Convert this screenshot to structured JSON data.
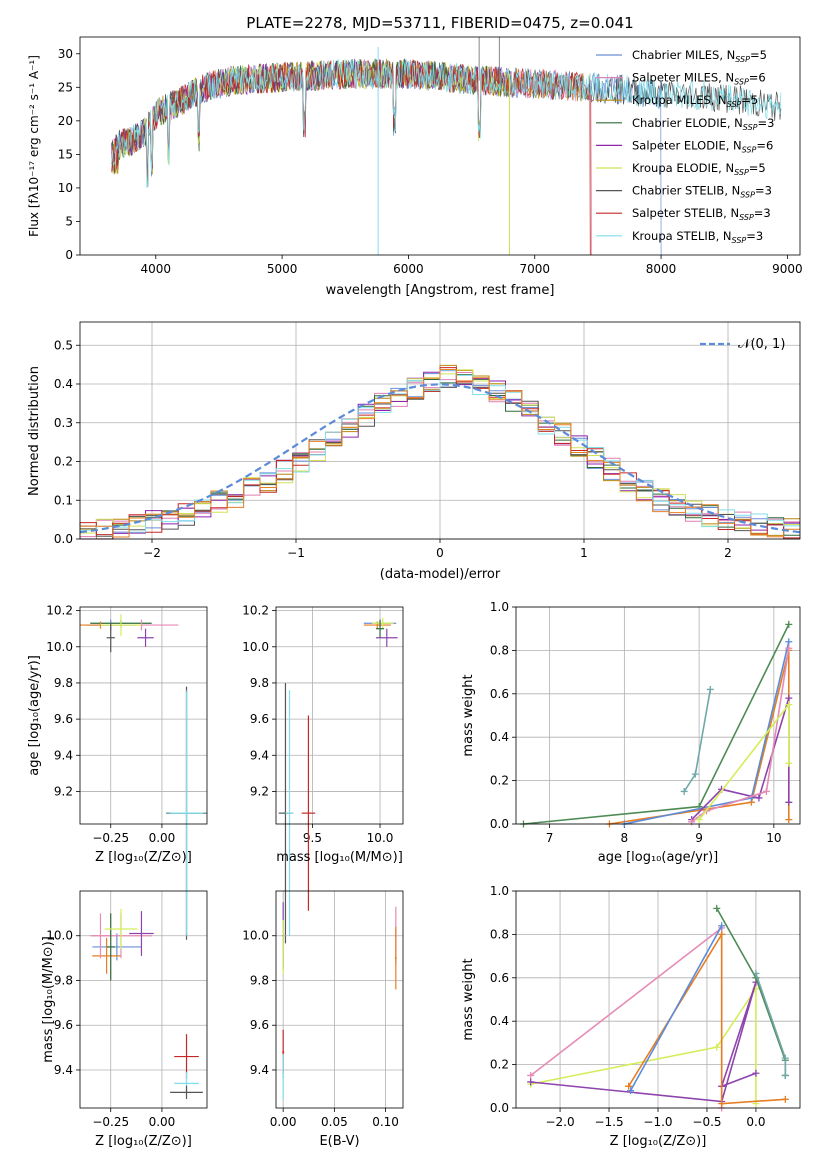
{
  "colors": {
    "Chabrier MILES": "#6a8fd8",
    "Salpeter MILES": "#e07fb5",
    "Kroupa MILES": "#b8860b",
    "Chabrier ELODIE": "#2e6b3c",
    "Salpeter ELODIE": "#8e24aa",
    "Kroupa ELODIE": "#d4e157",
    "Chabrier STELIB": "#555555",
    "Salpeter STELIB": "#c62828",
    "Kroupa STELIB": "#80deea",
    "normal": "#5b8bd9",
    "orange": "#e67e22",
    "green": "#4e8b55",
    "teal": "#6fa8a8",
    "purple": "#8e44ad",
    "pink": "#e68bb5",
    "lime": "#d4ed5a"
  },
  "chart_data": [
    {
      "type": "line",
      "title": "PLATE=2278, MJD=53711, FIBERID=0475, z=0.041",
      "xlabel": "wavelength [Angstrom, rest frame]",
      "ylabel": "Flux [fλ10⁻¹⁷ erg cm⁻² s⁻¹ A⁻¹]",
      "xlim": [
        3400,
        9100
      ],
      "ylim": [
        0,
        32.5
      ],
      "xticks": [
        "4000",
        "5000",
        "6000",
        "7000",
        "8000",
        "9000"
      ],
      "yticks": [
        "0",
        "5",
        "10",
        "15",
        "20",
        "25",
        "30"
      ],
      "legend_position": "top-right",
      "series": [
        {
          "name": "Chabrier MILES, NSSP=5",
          "label": "Chabrier MILES, N",
          "sub": "SSP",
          "tail": "=5",
          "end": 8000
        },
        {
          "name": "Salpeter MILES, NSSP=6",
          "label": "Salpeter MILES, N",
          "sub": "SSP",
          "tail": "=6",
          "end": 7450
        },
        {
          "name": "Kroupa MILES, NSSP=5",
          "label": "Kroupa MILES, N",
          "sub": "SSP",
          "tail": "=5",
          "end": 7440
        },
        {
          "name": "Chabrier ELODIE, NSSP=3",
          "label": "Chabrier ELODIE, N",
          "sub": "SSP",
          "tail": "=3",
          "end": 6800
        },
        {
          "name": "Salpeter ELODIE, NSSP=6",
          "label": "Salpeter ELODIE, N",
          "sub": "SSP",
          "tail": "=6",
          "end": 6800
        },
        {
          "name": "Kroupa ELODIE, NSSP=5",
          "label": "Kroupa ELODIE, N",
          "sub": "SSP",
          "tail": "=5",
          "end": 6800
        },
        {
          "name": "Chabrier STELIB, NSSP=3",
          "label": "Chabrier STELIB, N",
          "sub": "SSP",
          "tail": "=3",
          "end": 8950
        },
        {
          "name": "Salpeter STELIB, NSSP=3",
          "label": "Salpeter STELIB, N",
          "sub": "SSP",
          "tail": "=3",
          "end": 7440
        },
        {
          "name": "Kroupa STELIB, NSSP=3",
          "label": "Kroupa STELIB, N",
          "sub": "SSP",
          "tail": "=3",
          "end": 8950
        }
      ],
      "continuum": [
        [
          3650,
          16
        ],
        [
          3800,
          17
        ],
        [
          3900,
          18
        ],
        [
          4000,
          21
        ],
        [
          4200,
          23
        ],
        [
          4400,
          25
        ],
        [
          4600,
          26
        ],
        [
          5000,
          26.5
        ],
        [
          5300,
          26.8
        ],
        [
          5600,
          27
        ],
        [
          6000,
          27
        ],
        [
          6300,
          26.5
        ],
        [
          6600,
          26
        ],
        [
          7000,
          25.5
        ],
        [
          7500,
          25
        ],
        [
          8000,
          24
        ],
        [
          8500,
          23.5
        ],
        [
          8950,
          22
        ]
      ]
    },
    {
      "type": "step",
      "xlabel": "(data-model)/error",
      "ylabel": "Normed distribution",
      "xlim": [
        -2.5,
        2.5
      ],
      "ylim": [
        0,
        0.56
      ],
      "xticks": [
        "−2",
        "−1",
        "0",
        "1",
        "2"
      ],
      "yticks": [
        "0.0",
        "0.1",
        "0.2",
        "0.3",
        "0.4",
        "0.5"
      ],
      "legend": "𝒩(0, 1)",
      "legend_position": "top-right",
      "bin_edges": [
        -2.5,
        2.5
      ],
      "n_bins": 44,
      "base_profile": [
        0.018,
        0.025,
        0.03,
        0.04,
        0.045,
        0.055,
        0.065,
        0.08,
        0.095,
        0.11,
        0.13,
        0.15,
        0.175,
        0.2,
        0.23,
        0.26,
        0.29,
        0.32,
        0.35,
        0.37,
        0.39,
        0.41,
        0.42,
        0.41,
        0.4,
        0.38,
        0.355,
        0.33,
        0.3,
        0.27,
        0.24,
        0.21,
        0.18,
        0.15,
        0.125,
        0.1,
        0.085,
        0.07,
        0.06,
        0.05,
        0.04,
        0.035,
        0.03,
        0.028
      ]
    },
    {
      "type": "errorbar",
      "xlabel": "Z [log₁₀(Z/Z⊙)]",
      "ylabel": "age  [log₁₀(age/yr)]",
      "xlim": [
        -0.4,
        0.22
      ],
      "ylim": [
        9.02,
        10.22
      ],
      "xticks": [
        "−0.25",
        "0.00"
      ],
      "yticks": [
        "9.2",
        "9.4",
        "9.6",
        "9.8",
        "10.0",
        "10.2"
      ]
    },
    {
      "type": "errorbar",
      "xlabel": "mass [log₁₀(M/M⊙)]",
      "ylabel": "",
      "xlim": [
        9.23,
        10.17
      ],
      "ylim": [
        9.02,
        10.22
      ],
      "xticks": [
        "9.5",
        "10.0"
      ],
      "yticks": [
        "9.2",
        "9.4",
        "9.6",
        "9.8",
        "10.0",
        "10.2"
      ]
    },
    {
      "type": "line",
      "xlabel": "age  [log₁₀(age/yr)]",
      "ylabel": "mass weight",
      "xlim": [
        6.55,
        10.35
      ],
      "ylim": [
        0,
        1.0
      ],
      "xticks": [
        "7",
        "8",
        "9",
        "10"
      ],
      "yticks": [
        "0.0",
        "0.2",
        "0.4",
        "0.6",
        "0.8",
        "1.0"
      ],
      "series": [
        {
          "color": "teal",
          "x": [
            8.8,
            8.95,
            9.15
          ],
          "y": [
            0.15,
            0.23,
            0.62
          ]
        },
        {
          "color": "green",
          "x": [
            6.65,
            9.0,
            10.2
          ],
          "y": [
            0.0,
            0.08,
            0.92
          ]
        },
        {
          "color": "orange",
          "x": [
            7.8,
            9.7,
            10.2,
            10.2
          ],
          "y": [
            0.0,
            0.1,
            0.8,
            0.02
          ]
        },
        {
          "color": "normal",
          "x": [
            8.0,
            9.7,
            10.2
          ],
          "y": [
            0.0,
            0.12,
            0.84
          ]
        },
        {
          "color": "purple",
          "x": [
            8.9,
            9.3,
            9.8,
            10.2,
            10.2
          ],
          "y": [
            0.02,
            0.16,
            0.12,
            0.58,
            0.1
          ]
        },
        {
          "color": "pink",
          "x": [
            8.9,
            9.1,
            9.9,
            10.2
          ],
          "y": [
            0.01,
            0.06,
            0.15,
            0.81
          ]
        },
        {
          "color": "lime",
          "x": [
            9.0,
            10.2,
            10.2
          ],
          "y": [
            0.02,
            0.55,
            0.28
          ]
        }
      ]
    },
    {
      "type": "errorbar",
      "xlabel": "Z [log₁₀(Z/Z⊙)]",
      "ylabel": "mass [log₁₀(M/M⊙)]",
      "xlim": [
        -0.4,
        0.22
      ],
      "ylim": [
        9.23,
        10.2
      ],
      "xticks": [
        "−0.25",
        "0.00"
      ],
      "yticks": [
        "9.4",
        "9.6",
        "9.8",
        "10.0"
      ]
    },
    {
      "type": "errorbar",
      "xlabel": "E(B-V)",
      "ylabel": "",
      "xlim": [
        -0.007,
        0.117
      ],
      "ylim": [
        9.23,
        10.2
      ],
      "xticks": [
        "0.00",
        "0.05",
        "0.10"
      ],
      "yticks": [
        "9.4",
        "9.6",
        "9.8",
        "10.0"
      ]
    },
    {
      "type": "line",
      "xlabel": "Z [log₁₀(Z/Z⊙)]",
      "ylabel": "mass weight",
      "xlim": [
        -2.45,
        0.45
      ],
      "ylim": [
        0,
        1.0
      ],
      "xticks": [
        "−2.0",
        "−1.5",
        "−1.0",
        "−0.5",
        "0.0"
      ],
      "yticks": [
        "0.0",
        "0.2",
        "0.4",
        "0.6",
        "0.8",
        "1.0"
      ],
      "series": [
        {
          "color": "pink",
          "x": [
            -2.3,
            -0.35,
            -0.35
          ],
          "y": [
            0.15,
            0.83,
            0.0
          ]
        },
        {
          "color": "lime",
          "x": [
            -2.3,
            -0.4,
            0.0,
            0.0
          ],
          "y": [
            0.11,
            0.28,
            0.55,
            0.02
          ]
        },
        {
          "color": "purple",
          "x": [
            -2.3,
            -0.35,
            0.0,
            -0.35,
            0.0
          ],
          "y": [
            0.12,
            0.03,
            0.58,
            0.1,
            0.16
          ]
        },
        {
          "color": "orange",
          "x": [
            -1.3,
            -0.35,
            -0.35,
            0.3
          ],
          "y": [
            0.1,
            0.8,
            0.02,
            0.04
          ]
        },
        {
          "color": "normal",
          "x": [
            -1.28,
            -0.35
          ],
          "y": [
            0.08,
            0.84
          ]
        },
        {
          "color": "green",
          "x": [
            -0.4,
            0.0,
            0.3,
            0.3
          ],
          "y": [
            0.92,
            0.6,
            0.22,
            0.15
          ]
        },
        {
          "color": "teal",
          "x": [
            0.0,
            0.3,
            0.3
          ],
          "y": [
            0.62,
            0.23,
            0.15
          ]
        }
      ]
    }
  ]
}
